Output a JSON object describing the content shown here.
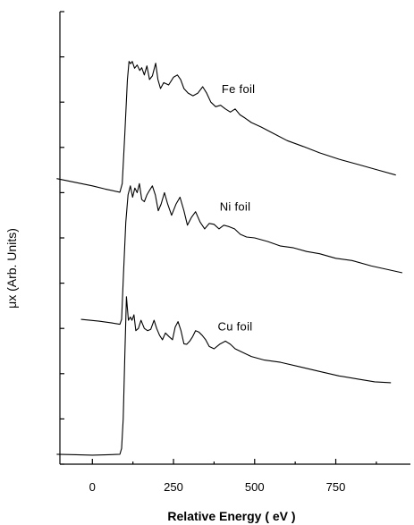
{
  "chart_data": {
    "type": "line",
    "title": "",
    "xlabel": "Relative Energy ( eV )",
    "ylabel": "μx (Arb. Units)",
    "xlim": [
      -100,
      980
    ],
    "xticks": [
      0,
      250,
      500,
      750
    ],
    "xtick_labels": [
      "0",
      "250",
      "500",
      "750"
    ],
    "ylim": [
      0,
      10
    ],
    "ytick_count": 11,
    "y_tick_labels_shown": false,
    "grid": false,
    "legend": "none",
    "series": [
      {
        "name": "Fe foil",
        "x": [
          -110,
          0,
          40,
          85,
          92,
          100,
          108,
          113,
          118,
          123,
          130,
          138,
          146,
          152,
          160,
          168,
          176,
          185,
          195,
          202,
          210,
          220,
          235,
          250,
          262,
          272,
          282,
          295,
          310,
          325,
          340,
          352,
          365,
          380,
          395,
          410,
          425,
          440,
          455,
          470,
          490,
          520,
          560,
          600,
          650,
          700,
          760,
          820,
          880,
          935
        ],
        "y": [
          6.31,
          6.15,
          6.08,
          6.01,
          6.2,
          7.3,
          8.5,
          8.9,
          8.85,
          8.9,
          8.75,
          8.82,
          8.7,
          8.76,
          8.6,
          8.8,
          8.5,
          8.58,
          8.86,
          8.5,
          8.3,
          8.43,
          8.38,
          8.55,
          8.6,
          8.5,
          8.3,
          8.2,
          8.14,
          8.2,
          8.34,
          8.2,
          8.0,
          7.9,
          7.93,
          7.85,
          7.78,
          7.85,
          7.72,
          7.65,
          7.55,
          7.45,
          7.3,
          7.15,
          7.02,
          6.88,
          6.74,
          6.62,
          6.5,
          6.39
        ]
      },
      {
        "name": "Ni foil",
        "x": [
          -35,
          20,
          60,
          85,
          90,
          96,
          103,
          110,
          117,
          124,
          131,
          138,
          145,
          152,
          160,
          168,
          176,
          185,
          194,
          203,
          212,
          222,
          232,
          244,
          258,
          270,
          282,
          293,
          305,
          318,
          332,
          346,
          360,
          375,
          390,
          405,
          420,
          438,
          456,
          475,
          500,
          540,
          580,
          620,
          660,
          700,
          750,
          800,
          860,
          910,
          955
        ],
        "y": [
          3.2,
          3.16,
          3.12,
          3.09,
          3.2,
          4.2,
          5.35,
          5.95,
          6.15,
          5.9,
          6.1,
          6.0,
          6.2,
          5.85,
          5.8,
          5.95,
          6.05,
          6.15,
          5.95,
          5.6,
          5.75,
          6.0,
          5.75,
          5.5,
          5.75,
          5.9,
          5.6,
          5.28,
          5.45,
          5.58,
          5.35,
          5.2,
          5.32,
          5.3,
          5.2,
          5.28,
          5.25,
          5.2,
          5.08,
          5.02,
          5.0,
          4.92,
          4.82,
          4.78,
          4.7,
          4.65,
          4.55,
          4.5,
          4.38,
          4.3,
          4.23
        ]
      },
      {
        "name": "Cu foil",
        "x": [
          -110,
          -50,
          0,
          50,
          85,
          90,
          95,
          100,
          105,
          111,
          117,
          122,
          128,
          134,
          142,
          150,
          160,
          170,
          180,
          190,
          198,
          207,
          216,
          225,
          236,
          247,
          255,
          264,
          273,
          282,
          291,
          300,
          309,
          318,
          328,
          338,
          349,
          360,
          375,
          392,
          410,
          425,
          440,
          460,
          490,
          530,
          580,
          640,
          700,
          760,
          820,
          870,
          920
        ],
        "y": [
          0.22,
          0.21,
          0.2,
          0.21,
          0.22,
          0.35,
          1.0,
          2.4,
          3.7,
          3.18,
          3.25,
          3.18,
          3.3,
          2.95,
          3.0,
          3.18,
          3.0,
          2.95,
          2.98,
          3.18,
          3.0,
          2.85,
          2.75,
          2.9,
          2.82,
          2.75,
          3.03,
          3.15,
          2.95,
          2.66,
          2.65,
          2.72,
          2.82,
          2.95,
          2.92,
          2.85,
          2.75,
          2.6,
          2.55,
          2.65,
          2.72,
          2.65,
          2.55,
          2.48,
          2.38,
          2.3,
          2.25,
          2.15,
          2.05,
          1.95,
          1.88,
          1.82,
          1.8
        ]
      }
    ],
    "annotations": [
      {
        "text": "Fe foil",
        "x": 450,
        "y": 8.2
      },
      {
        "text": "Ni foil",
        "x": 440,
        "y": 5.6
      },
      {
        "text": "Cu foil",
        "x": 440,
        "y": 2.95
      }
    ]
  }
}
